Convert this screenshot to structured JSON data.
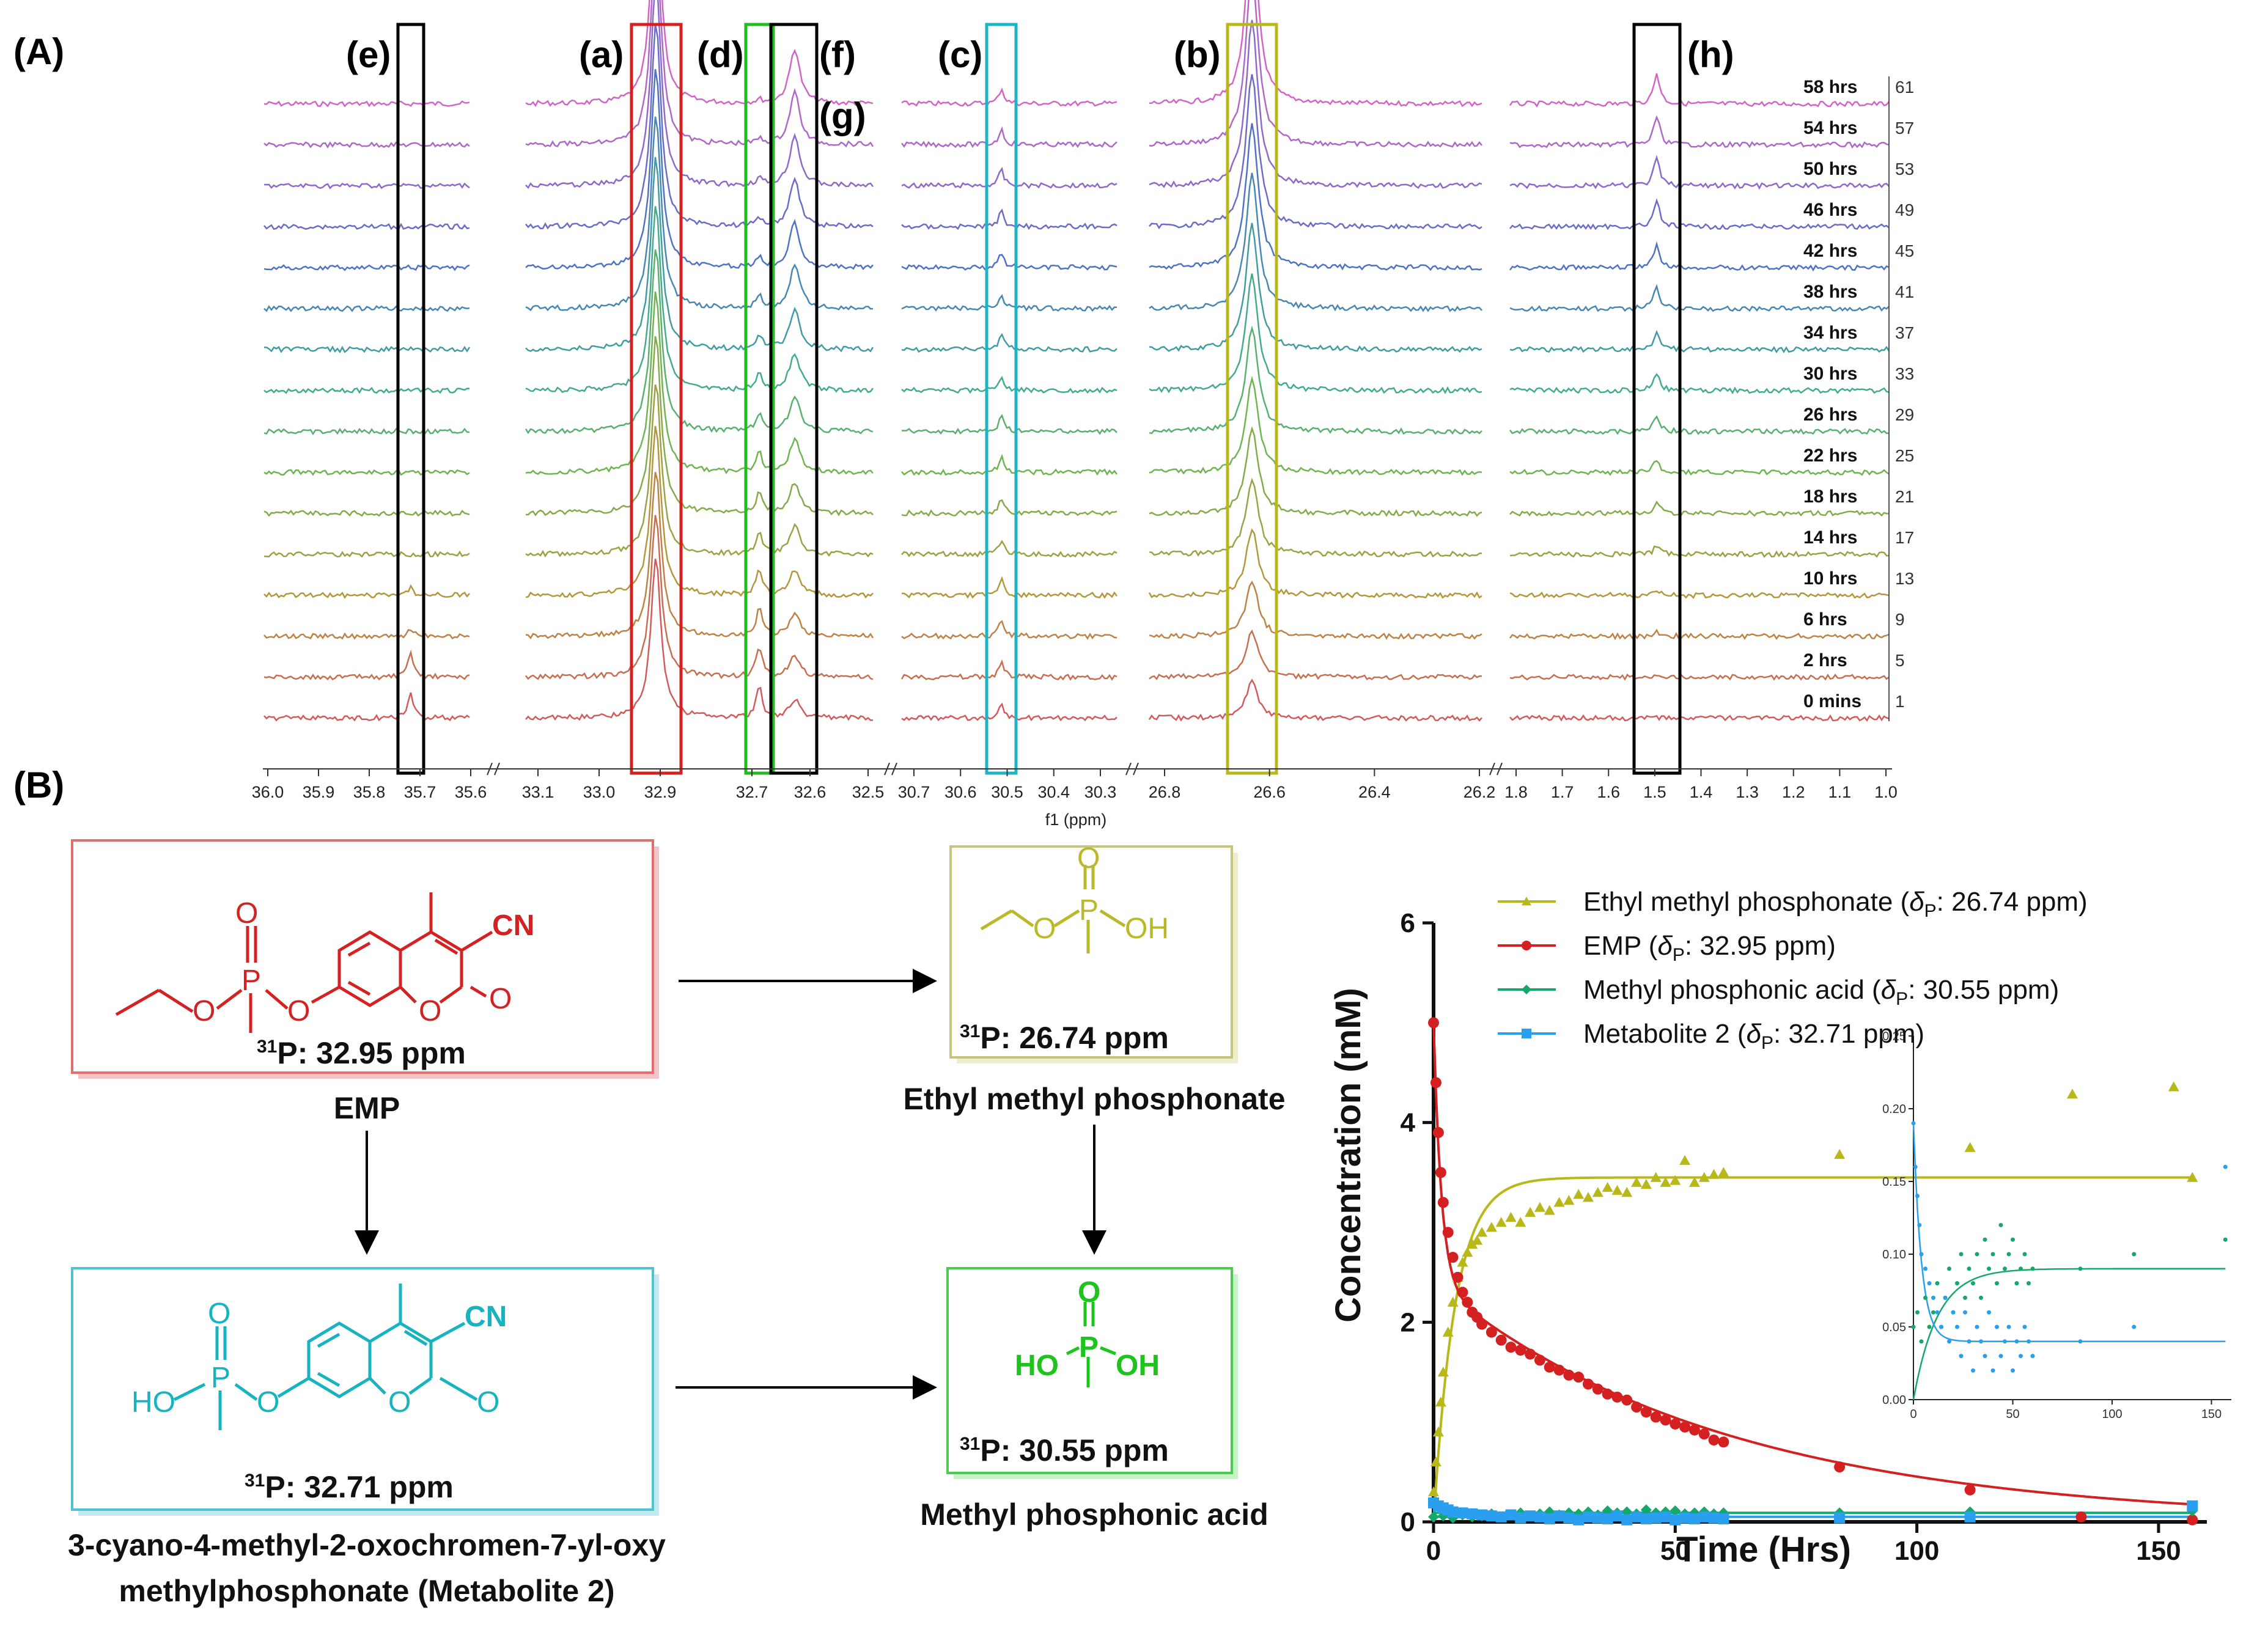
{
  "panel_a_label": "(A)",
  "panel_b_label": "(B)",
  "nmr": {
    "peak_labels": [
      "(e)",
      "(a)",
      "(d)",
      "(f)",
      "(g)",
      "(c)",
      "(b)",
      "(h)"
    ],
    "x_axis_label": "f1 (ppm)",
    "tick_groups": [
      [
        "36.0",
        "35.9",
        "35.8",
        "35.7",
        "35.6"
      ],
      [
        "33.1",
        "33.0",
        "32.9"
      ],
      [
        "32.7",
        "32.6",
        "32.5"
      ],
      [
        "30.7",
        "30.6",
        "30.5",
        "30.4",
        "30.3"
      ],
      [
        "26.8",
        "26.6",
        "26.4",
        "26.2"
      ],
      [
        "1.8",
        "1.7",
        "1.6",
        "1.5",
        "1.4",
        "1.3",
        "1.2",
        "1.1",
        "1.0"
      ]
    ],
    "time_labels": [
      "58 hrs",
      "54 hrs",
      "50 hrs",
      "46 hrs",
      "42 hrs",
      "38 hrs",
      "34 hrs",
      "30 hrs",
      "26 hrs",
      "22 hrs",
      "18 hrs",
      "14 hrs",
      "10 hrs",
      "6 hrs",
      "2 hrs",
      "0 mins"
    ],
    "spectrum_numbers": [
      "61",
      "57",
      "53",
      "49",
      "45",
      "41",
      "37",
      "33",
      "29",
      "25",
      "21",
      "17",
      "13",
      "9",
      "5",
      "1"
    ],
    "colors": {
      "red": "#d32020",
      "yellow": "#b8b81a",
      "green": "#22bb22",
      "cyan": "#1cb5c8",
      "black": "#000000"
    }
  },
  "scheme": {
    "emp": {
      "shift": "P: 32.95 ppm",
      "sup": "31",
      "name": "EMP",
      "color": "#d42222"
    },
    "ethyl": {
      "shift": "P: 26.74 ppm",
      "sup": "31",
      "name": "Ethyl methyl phosphonate",
      "color": "#b9b92a"
    },
    "metab": {
      "shift": "P: 32.71 ppm",
      "sup": "31",
      "name_line1": "3-cyano-4-methyl-2-oxochromen-7-yl-oxy",
      "name_line2": "methylphosphonate (Metabolite 2)",
      "color": "#17b3c0"
    },
    "mpa": {
      "shift": "P: 30.55 ppm",
      "sup": "31",
      "name": "Methyl phosphonic acid",
      "color": "#1cc41c"
    },
    "atoms": {
      "O": "O",
      "P": "P",
      "CN": "CN",
      "OH": "OH",
      "HO": "HO"
    }
  },
  "chart_data": {
    "type": "scatter",
    "xlabel": "Time (Hrs)",
    "ylabel": "Concentration (mM)",
    "xlim": [
      0,
      160
    ],
    "ylim": [
      0,
      6
    ],
    "xticks": [
      0,
      50,
      100,
      150
    ],
    "yticks": [
      0,
      2,
      4,
      6
    ],
    "legend_position": "top-right",
    "series": [
      {
        "name": "Ethyl methyl phosphonate (δP: 26.74 ppm)",
        "label_main": "Ethyl methyl phosphonate (",
        "label_delta": "δ",
        "label_sub": "P",
        "label_tail": ": 26.74 ppm)",
        "color": "#b8b81a",
        "marker": "triangle",
        "x": [
          0,
          0.5,
          1,
          1.5,
          2,
          3,
          4,
          5,
          6,
          7,
          8,
          9,
          10,
          12,
          14,
          16,
          18,
          20,
          22,
          24,
          26,
          28,
          30,
          32,
          34,
          36,
          38,
          40,
          42,
          44,
          46,
          48,
          50,
          52,
          54,
          56,
          58,
          60,
          84,
          111,
          157
        ],
        "y": [
          0.3,
          0.6,
          0.9,
          1.2,
          1.5,
          1.9,
          2.2,
          2.45,
          2.6,
          2.7,
          2.78,
          2.82,
          2.9,
          2.95,
          3.0,
          3.05,
          3.0,
          3.1,
          3.15,
          3.12,
          3.2,
          3.22,
          3.28,
          3.25,
          3.3,
          3.35,
          3.32,
          3.3,
          3.4,
          3.38,
          3.45,
          3.4,
          3.42,
          3.62,
          3.4,
          3.45,
          3.48,
          3.5,
          3.68,
          3.75,
          3.45
        ]
      },
      {
        "name": "EMP (δP: 32.95 ppm)",
        "label_main": "EMP (",
        "label_delta": "δ",
        "label_sub": "P",
        "label_tail": ": 32.95 ppm)",
        "color": "#d42020",
        "marker": "circle",
        "x": [
          0,
          0.5,
          1,
          1.5,
          2,
          3,
          4,
          5,
          6,
          7,
          8,
          9,
          10,
          12,
          14,
          16,
          18,
          20,
          22,
          24,
          26,
          28,
          30,
          32,
          34,
          36,
          38,
          40,
          42,
          44,
          46,
          48,
          50,
          52,
          54,
          56,
          58,
          60,
          84,
          111,
          134,
          157
        ],
        "y": [
          5.0,
          4.4,
          3.9,
          3.5,
          3.2,
          2.9,
          2.65,
          2.45,
          2.3,
          2.2,
          2.1,
          2.05,
          1.98,
          1.9,
          1.82,
          1.75,
          1.72,
          1.68,
          1.62,
          1.55,
          1.52,
          1.47,
          1.45,
          1.38,
          1.33,
          1.28,
          1.25,
          1.22,
          1.15,
          1.1,
          1.05,
          1.02,
          0.98,
          0.95,
          0.92,
          0.88,
          0.82,
          0.8,
          0.55,
          0.32,
          0.05,
          0.02
        ]
      },
      {
        "name": "Methyl phosphonic acid (δP: 30.55 ppm)",
        "label_main": "Methyl phosphonic acid (",
        "label_delta": "δ",
        "label_sub": "P",
        "label_tail": ": 30.55 ppm)",
        "color": "#16a86a",
        "marker": "diamond",
        "x": [
          0,
          2,
          4,
          6,
          8,
          10,
          12,
          14,
          16,
          18,
          20,
          22,
          24,
          26,
          28,
          30,
          32,
          34,
          36,
          38,
          40,
          42,
          44,
          46,
          48,
          50,
          52,
          54,
          56,
          58,
          60,
          84,
          111,
          157
        ],
        "y": [
          0.05,
          0.06,
          0.04,
          0.07,
          0.05,
          0.06,
          0.08,
          0.05,
          0.07,
          0.09,
          0.06,
          0.08,
          0.1,
          0.07,
          0.09,
          0.08,
          0.1,
          0.07,
          0.11,
          0.09,
          0.1,
          0.08,
          0.12,
          0.09,
          0.1,
          0.11,
          0.08,
          0.09,
          0.1,
          0.08,
          0.09,
          0.09,
          0.1,
          0.11
        ]
      },
      {
        "name": "Metabolite 2 (δP: 32.71 ppm)",
        "label_main": "Metabolite 2 (",
        "label_delta": "δ",
        "label_sub": "P",
        "label_tail": ": 32.71 ppm)",
        "color": "#2a9ff0",
        "marker": "square",
        "x": [
          0,
          1,
          2,
          3,
          4,
          6,
          8,
          10,
          12,
          14,
          16,
          18,
          20,
          22,
          24,
          26,
          28,
          30,
          32,
          34,
          36,
          38,
          40,
          42,
          44,
          46,
          48,
          50,
          52,
          54,
          56,
          58,
          60,
          84,
          111,
          157
        ],
        "y": [
          0.19,
          0.16,
          0.14,
          0.12,
          0.1,
          0.09,
          0.08,
          0.07,
          0.06,
          0.05,
          0.07,
          0.04,
          0.06,
          0.05,
          0.03,
          0.06,
          0.04,
          0.02,
          0.05,
          0.04,
          0.03,
          0.06,
          0.02,
          0.05,
          0.03,
          0.04,
          0.05,
          0.02,
          0.04,
          0.03,
          0.05,
          0.04,
          0.03,
          0.04,
          0.05,
          0.16
        ]
      }
    ],
    "inset": {
      "xlim": [
        0,
        160
      ],
      "ylim": [
        0,
        0.25
      ],
      "xticks": [
        0,
        50,
        100,
        150
      ],
      "yticks": [
        0.0,
        0.05,
        0.1,
        0.15,
        0.2,
        0.25
      ],
      "ytick_labels": [
        "0.00",
        "0.05",
        "0.10",
        "0.15",
        "0.20",
        "0.25"
      ]
    }
  }
}
